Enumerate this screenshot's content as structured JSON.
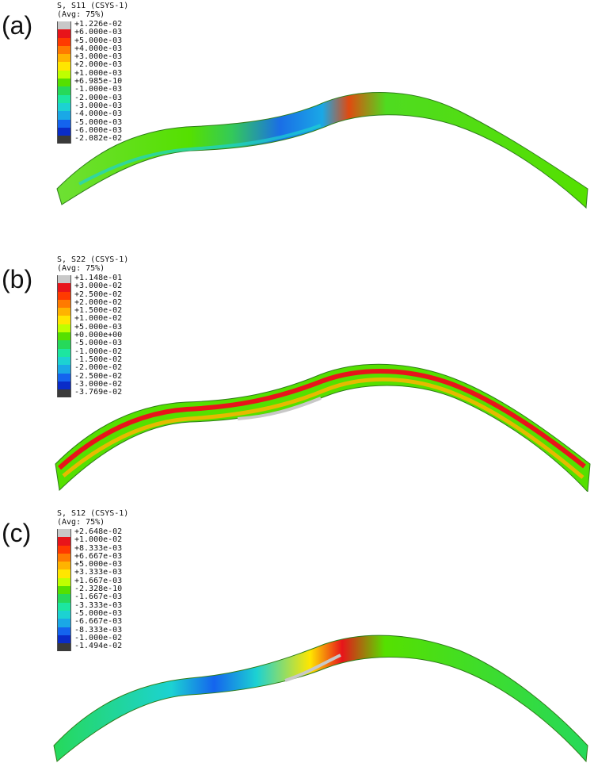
{
  "panels": [
    {
      "letter": "(a)",
      "legend_title": "S, S11 (CSYS-1)",
      "legend_subtitle": "(Avg: 75%)",
      "legend_values": [
        "+1.226e-02",
        "+6.000e-03",
        "+5.000e-03",
        "+4.000e-03",
        "+3.000e-03",
        "+2.000e-03",
        "+1.000e-03",
        "+6.985e-10",
        "-1.000e-03",
        "-2.000e-03",
        "-3.000e-03",
        "-4.000e-03",
        "-5.000e-03",
        "-6.000e-03",
        "-2.082e-02"
      ]
    },
    {
      "letter": "(b)",
      "legend_title": "S, S22 (CSYS-1)",
      "legend_subtitle": "(Avg: 75%)",
      "legend_values": [
        "+1.148e-01",
        "+3.000e-02",
        "+2.500e-02",
        "+2.000e-02",
        "+1.500e-02",
        "+1.000e-02",
        "+5.000e-03",
        "+0.000e+00",
        "-5.000e-03",
        "-1.000e-02",
        "-1.500e-02",
        "-2.000e-02",
        "-2.500e-02",
        "-3.000e-02",
        "-3.769e-02"
      ]
    },
    {
      "letter": "(c)",
      "legend_title": "S, S12 (CSYS-1)",
      "legend_subtitle": "(Avg: 75%)",
      "legend_values": [
        "+2.648e-02",
        "+1.000e-02",
        "+8.333e-03",
        "+6.667e-03",
        "+5.000e-03",
        "+3.333e-03",
        "+1.667e-03",
        "-2.328e-10",
        "-1.667e-03",
        "-3.333e-03",
        "-5.000e-03",
        "-6.667e-03",
        "-8.333e-03",
        "-1.000e-02",
        "-1.494e-02"
      ]
    }
  ],
  "colormap": [
    "#c8c8c8",
    "#e8141a",
    "#ff3a00",
    "#ff7a00",
    "#ffb300",
    "#ffe600",
    "#bfff00",
    "#55e000",
    "#26d95a",
    "#1ce6a0",
    "#1cd2d2",
    "#1aa8e6",
    "#1464ee",
    "#0a2cc8",
    "#3a3a3a"
  ]
}
